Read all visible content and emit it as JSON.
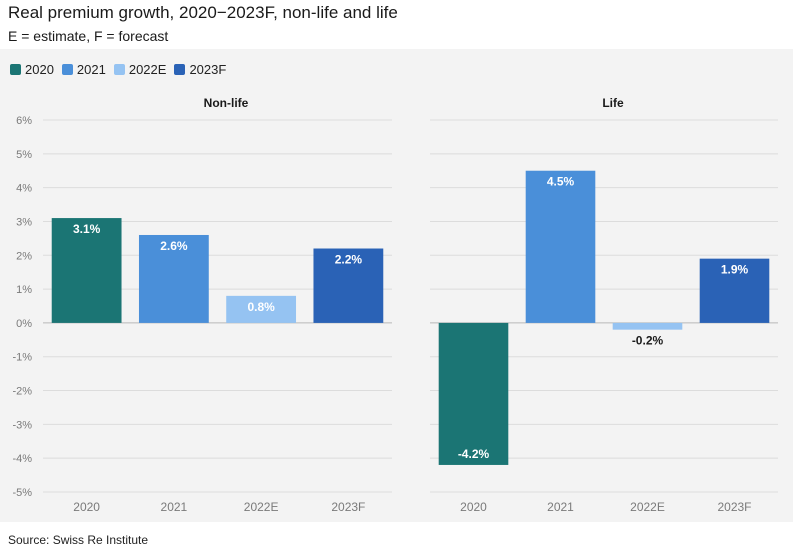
{
  "title": "Real premium growth, 2020−2023F, non-life and life",
  "subtitle": "E = estimate, F = forecast",
  "source": "Source: Swiss Re Institute",
  "legend": [
    {
      "label": "2020",
      "color": "#1b7574"
    },
    {
      "label": "2021",
      "color": "#4a8fd9"
    },
    {
      "label": "2022E",
      "color": "#95c3f2"
    },
    {
      "label": "2023F",
      "color": "#2a62b6"
    }
  ],
  "chart_data": [
    {
      "type": "bar",
      "title": "Non-life",
      "categories": [
        "2020",
        "2021",
        "2022E",
        "2023F"
      ],
      "values": [
        3.1,
        2.6,
        0.8,
        2.2
      ],
      "labels": [
        "3.1%",
        "2.6%",
        "0.8%",
        "2.2%"
      ],
      "ylim": [
        -5,
        6
      ],
      "yticks": [
        "-5%",
        "-4%",
        "-3%",
        "-2%",
        "-1%",
        "0%",
        "1%",
        "2%",
        "3%",
        "4%",
        "5%",
        "6%"
      ],
      "grid": true
    },
    {
      "type": "bar",
      "title": "Life",
      "categories": [
        "2020",
        "2021",
        "2022E",
        "2023F"
      ],
      "values": [
        -4.2,
        4.5,
        -0.2,
        1.9
      ],
      "labels": [
        "-4.2%",
        "4.5%",
        "-0.2%",
        "1.9%"
      ],
      "ylim": [
        -5,
        6
      ],
      "grid": true
    }
  ]
}
